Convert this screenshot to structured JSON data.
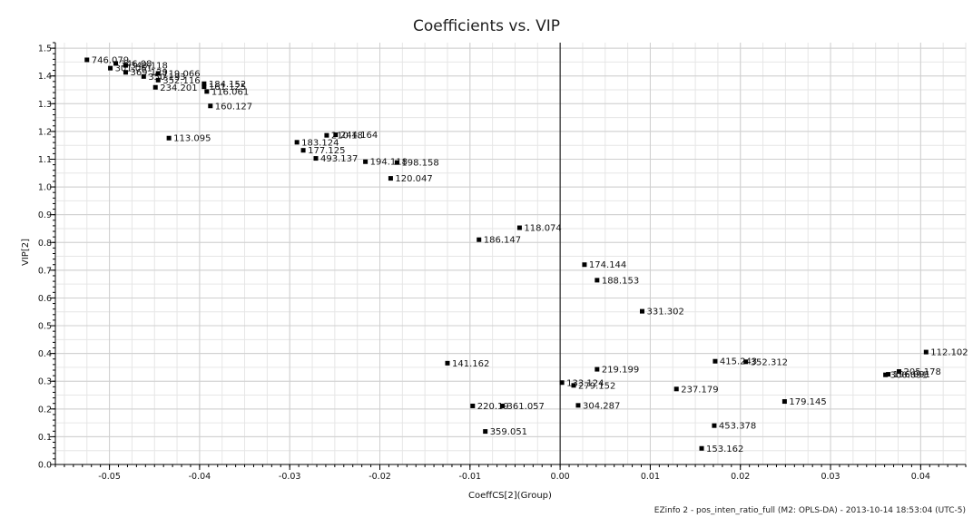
{
  "chart_data": {
    "type": "scatter",
    "title": "Coefficients vs. VIP",
    "xlabel": "CoeffCS[2](Group)",
    "ylabel": "VIP[2]",
    "xlim": [
      -0.056,
      0.045
    ],
    "ylim": [
      0,
      1.52
    ],
    "x_ticks": [
      -0.05,
      -0.04,
      -0.03,
      -0.02,
      -0.01,
      0.0,
      0.01,
      0.02,
      0.03,
      0.04
    ],
    "x_tick_labels": [
      "-0.05",
      "-0.04",
      "-0.03",
      "-0.02",
      "-0.01",
      "0.00",
      "0.01",
      "0.02",
      "0.03",
      "0.04"
    ],
    "y_ticks": [
      0.0,
      0.1,
      0.2,
      0.3,
      0.4,
      0.5,
      0.6,
      0.7,
      0.8,
      0.9,
      1.0,
      1.1,
      1.2,
      1.3,
      1.4,
      1.5
    ],
    "y_tick_labels": [
      "0.0",
      "0.1",
      "0.2",
      "0.3",
      "0.4",
      "0.5",
      "0.6",
      "0.7",
      "0.8",
      "0.9",
      "1.0",
      "1.1",
      "1.2",
      "1.3",
      "1.4",
      "1.5"
    ],
    "grid": true,
    "color": "#000000",
    "points": [
      {
        "label": "746.079",
        "x": -0.0525,
        "y": 1.458
      },
      {
        "label": "301.061",
        "x": -0.0499,
        "y": 1.428
      },
      {
        "label": "346.08",
        "x": -0.0493,
        "y": 1.445
      },
      {
        "label": "348.118",
        "x": -0.0482,
        "y": 1.438
      },
      {
        "label": "369.129",
        "x": -0.0482,
        "y": 1.413
      },
      {
        "label": "350.193",
        "x": -0.0462,
        "y": 1.398
      },
      {
        "label": "119.066",
        "x": -0.0446,
        "y": 1.409
      },
      {
        "label": "352.116",
        "x": -0.0446,
        "y": 1.385
      },
      {
        "label": "234.201",
        "x": -0.0449,
        "y": 1.359
      },
      {
        "label": "184.152",
        "x": -0.0395,
        "y": 1.372
      },
      {
        "label": "161.125",
        "x": -0.0395,
        "y": 1.361
      },
      {
        "label": "116.061",
        "x": -0.0392,
        "y": 1.344
      },
      {
        "label": "160.127",
        "x": -0.0388,
        "y": 1.292
      },
      {
        "label": "113.095",
        "x": -0.0434,
        "y": 1.176
      },
      {
        "label": "210.18",
        "x": -0.0259,
        "y": 1.186
      },
      {
        "label": "244.164",
        "x": -0.0249,
        "y": 1.188
      },
      {
        "label": "183.124",
        "x": -0.0292,
        "y": 1.161
      },
      {
        "label": "177.125",
        "x": -0.0285,
        "y": 1.132
      },
      {
        "label": "493.137",
        "x": -0.0271,
        "y": 1.103
      },
      {
        "label": "194.118",
        "x": -0.0216,
        "y": 1.091
      },
      {
        "label": "198.158",
        "x": -0.0181,
        "y": 1.088
      },
      {
        "label": "120.047",
        "x": -0.0188,
        "y": 1.031
      },
      {
        "label": "118.074",
        "x": -0.0045,
        "y": 0.853
      },
      {
        "label": "186.147",
        "x": -0.009,
        "y": 0.81
      },
      {
        "label": "174.144",
        "x": 0.0027,
        "y": 0.72
      },
      {
        "label": "188.153",
        "x": 0.0041,
        "y": 0.664
      },
      {
        "label": "331.302",
        "x": 0.0091,
        "y": 0.552
      },
      {
        "label": "141.162",
        "x": -0.0125,
        "y": 0.365
      },
      {
        "label": "219.199",
        "x": 0.0041,
        "y": 0.343
      },
      {
        "label": "133.124",
        "x": 0.0002,
        "y": 0.295
      },
      {
        "label": "279.152",
        "x": 0.0015,
        "y": 0.285
      },
      {
        "label": "304.287",
        "x": 0.002,
        "y": 0.213
      },
      {
        "label": "220.19",
        "x": -0.0097,
        "y": 0.211
      },
      {
        "label": "361.057",
        "x": -0.0064,
        "y": 0.211
      },
      {
        "label": "359.051",
        "x": -0.0083,
        "y": 0.119
      },
      {
        "label": "237.179",
        "x": 0.0129,
        "y": 0.272
      },
      {
        "label": "415.243",
        "x": 0.0172,
        "y": 0.372
      },
      {
        "label": "352.312",
        "x": 0.0206,
        "y": 0.37
      },
      {
        "label": "179.145",
        "x": 0.0249,
        "y": 0.227
      },
      {
        "label": "453.378",
        "x": 0.0171,
        "y": 0.14
      },
      {
        "label": "153.162",
        "x": 0.0157,
        "y": 0.058
      },
      {
        "label": "112.102",
        "x": 0.0406,
        "y": 0.405
      },
      {
        "label": "205.178",
        "x": 0.0376,
        "y": 0.335
      },
      {
        "label": "196.091",
        "x": 0.0364,
        "y": 0.325
      },
      {
        "label": "300.091",
        "x": 0.0361,
        "y": 0.323
      }
    ]
  },
  "footer_note": "EZinfo 2 - pos_inten_ratio_full (M2: OPLS-DA) - 2013-10-14 18:53:04 (UTC-5)"
}
